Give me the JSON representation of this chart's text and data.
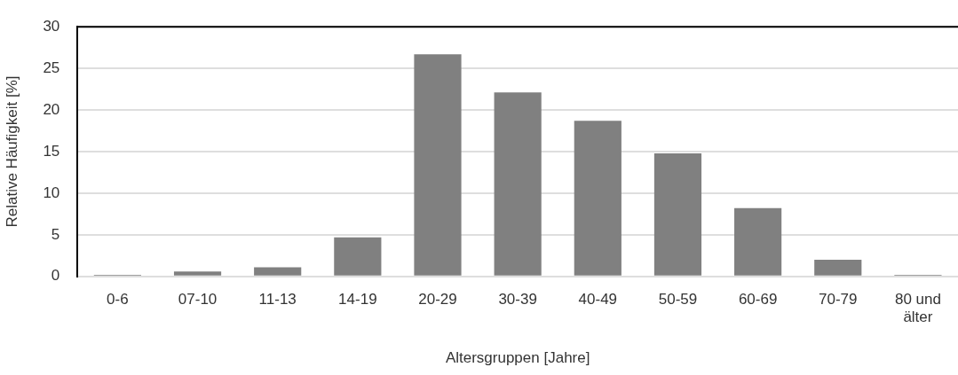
{
  "chart_data": {
    "type": "bar",
    "xlabel": "Altersgruppen [Jahre]",
    "ylabel": "Relative Häufigkeit [%]",
    "categories": [
      "0-6",
      "07-10",
      "11-13",
      "14-19",
      "20-29",
      "30-39",
      "40-49",
      "50-59",
      "60-69",
      "70-79",
      "80 und älter"
    ],
    "values": [
      0.2,
      0.6,
      1.1,
      4.7,
      26.7,
      22.1,
      18.7,
      14.8,
      8.2,
      2.0,
      0.2
    ],
    "color": "#808080",
    "ylim": [
      0,
      30
    ],
    "yticks": [
      0,
      5,
      10,
      15,
      20,
      25,
      30
    ],
    "grid": "y"
  }
}
